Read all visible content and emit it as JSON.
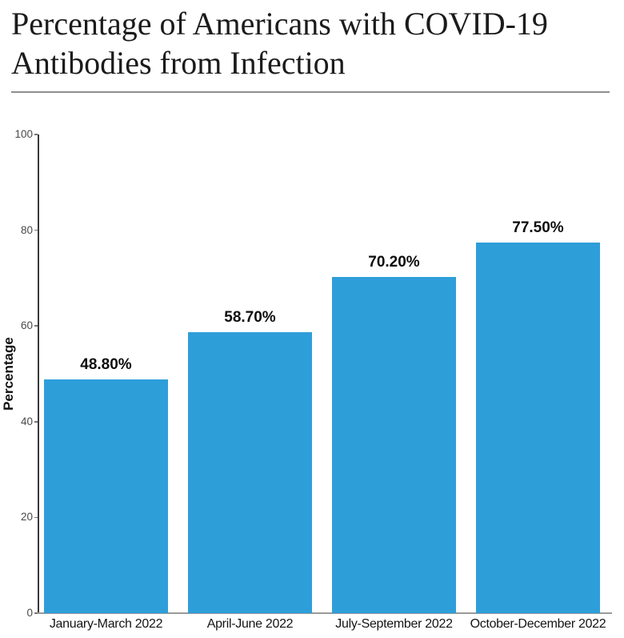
{
  "header": {
    "title": "Percentage of Americans with COVID-19 Antibodies from Infection"
  },
  "chart_data": {
    "type": "bar",
    "title": "Percentage of Americans with COVID-19 Antibodies from Infection",
    "categories": [
      "January-March 2022",
      "April-June 2022",
      "July-September 2022",
      "October-December 2022"
    ],
    "values": [
      48.8,
      58.7,
      70.2,
      77.5
    ],
    "value_labels": [
      "48.80%",
      "58.70%",
      "70.20%",
      "77.50%"
    ],
    "xlabel": "",
    "ylabel": "Percentage",
    "ylim": [
      0,
      100
    ],
    "yticks": [
      0,
      20,
      40,
      60,
      80,
      100
    ],
    "grid": false,
    "legend": null,
    "colors": {
      "bar": "#2e9ed9",
      "axis": "#3a3a3a",
      "baseline": "#9a9a9a",
      "tick_label": "#4a4a4a",
      "text": "#111111"
    }
  }
}
